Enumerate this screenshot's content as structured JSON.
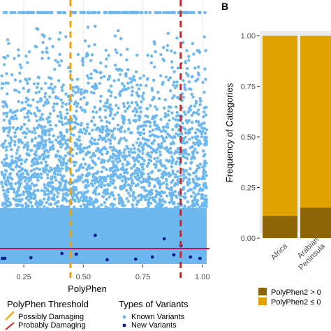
{
  "chart_data": [
    {
      "type": "scatter",
      "xlabel": "PolyPhen",
      "ylabel": "",
      "xlim": [
        0.15,
        1.03
      ],
      "x_ticks": [
        "0.25",
        "0.50",
        "0.75",
        "1.00"
      ],
      "x_tick_values": [
        0.25,
        0.5,
        0.75,
        1.0
      ],
      "grid": true,
      "colors": {
        "known": "#6cb8ef",
        "new": "#0b1f8f",
        "possibly": "#f0a000",
        "probably": "#dd1e1e",
        "hline": "#c0145a"
      },
      "thresholds": [
        {
          "name": "Possibly Damaging",
          "x": 0.446,
          "color": "#f0a000"
        },
        {
          "name": "Probably Damaging",
          "x": 0.909,
          "color": "#dd1e1e"
        }
      ],
      "legends": {
        "threshold_title": "PolyPhen Threshold",
        "threshold_items": [
          "Possibly Damaging",
          "Probably Damaging"
        ],
        "variant_title": "Types of Variants",
        "variant_items": [
          "Known Variants",
          "New Variants"
        ]
      },
      "series": [
        {
          "name": "Known Variants",
          "description": "dense cloud of points across all PolyPhen scores, densest at low y-values"
        },
        {
          "name": "New Variants",
          "points_x": [
            0.16,
            0.28,
            0.41,
            0.47,
            0.55,
            0.6,
            0.72,
            0.79,
            0.84,
            0.88,
            0.91,
            0.95,
            0.99,
            0.17
          ]
        }
      ]
    },
    {
      "type": "bar",
      "stacked": true,
      "panel_label": "B",
      "ylabel": "Frequency of Categories",
      "ylim": [
        0,
        1
      ],
      "y_ticks": [
        "0.00",
        "0.25",
        "0.50",
        "0.75",
        "1.00"
      ],
      "y_tick_values": [
        0,
        0.25,
        0.5,
        0.75,
        1.0
      ],
      "categories": [
        "Africa",
        "Arabian Peninsula"
      ],
      "series": [
        {
          "name": "PolyPhen2 > 0",
          "color": "#8b6508",
          "values": [
            0.11,
            0.15
          ]
        },
        {
          "name": "PolyPhen2 ≤ 0",
          "color": "#dfa300",
          "values": [
            0.89,
            0.85
          ]
        }
      ],
      "legend_items": [
        "PolyPhen2 > 0",
        "PolyPhen2 ≤ 0"
      ]
    }
  ]
}
